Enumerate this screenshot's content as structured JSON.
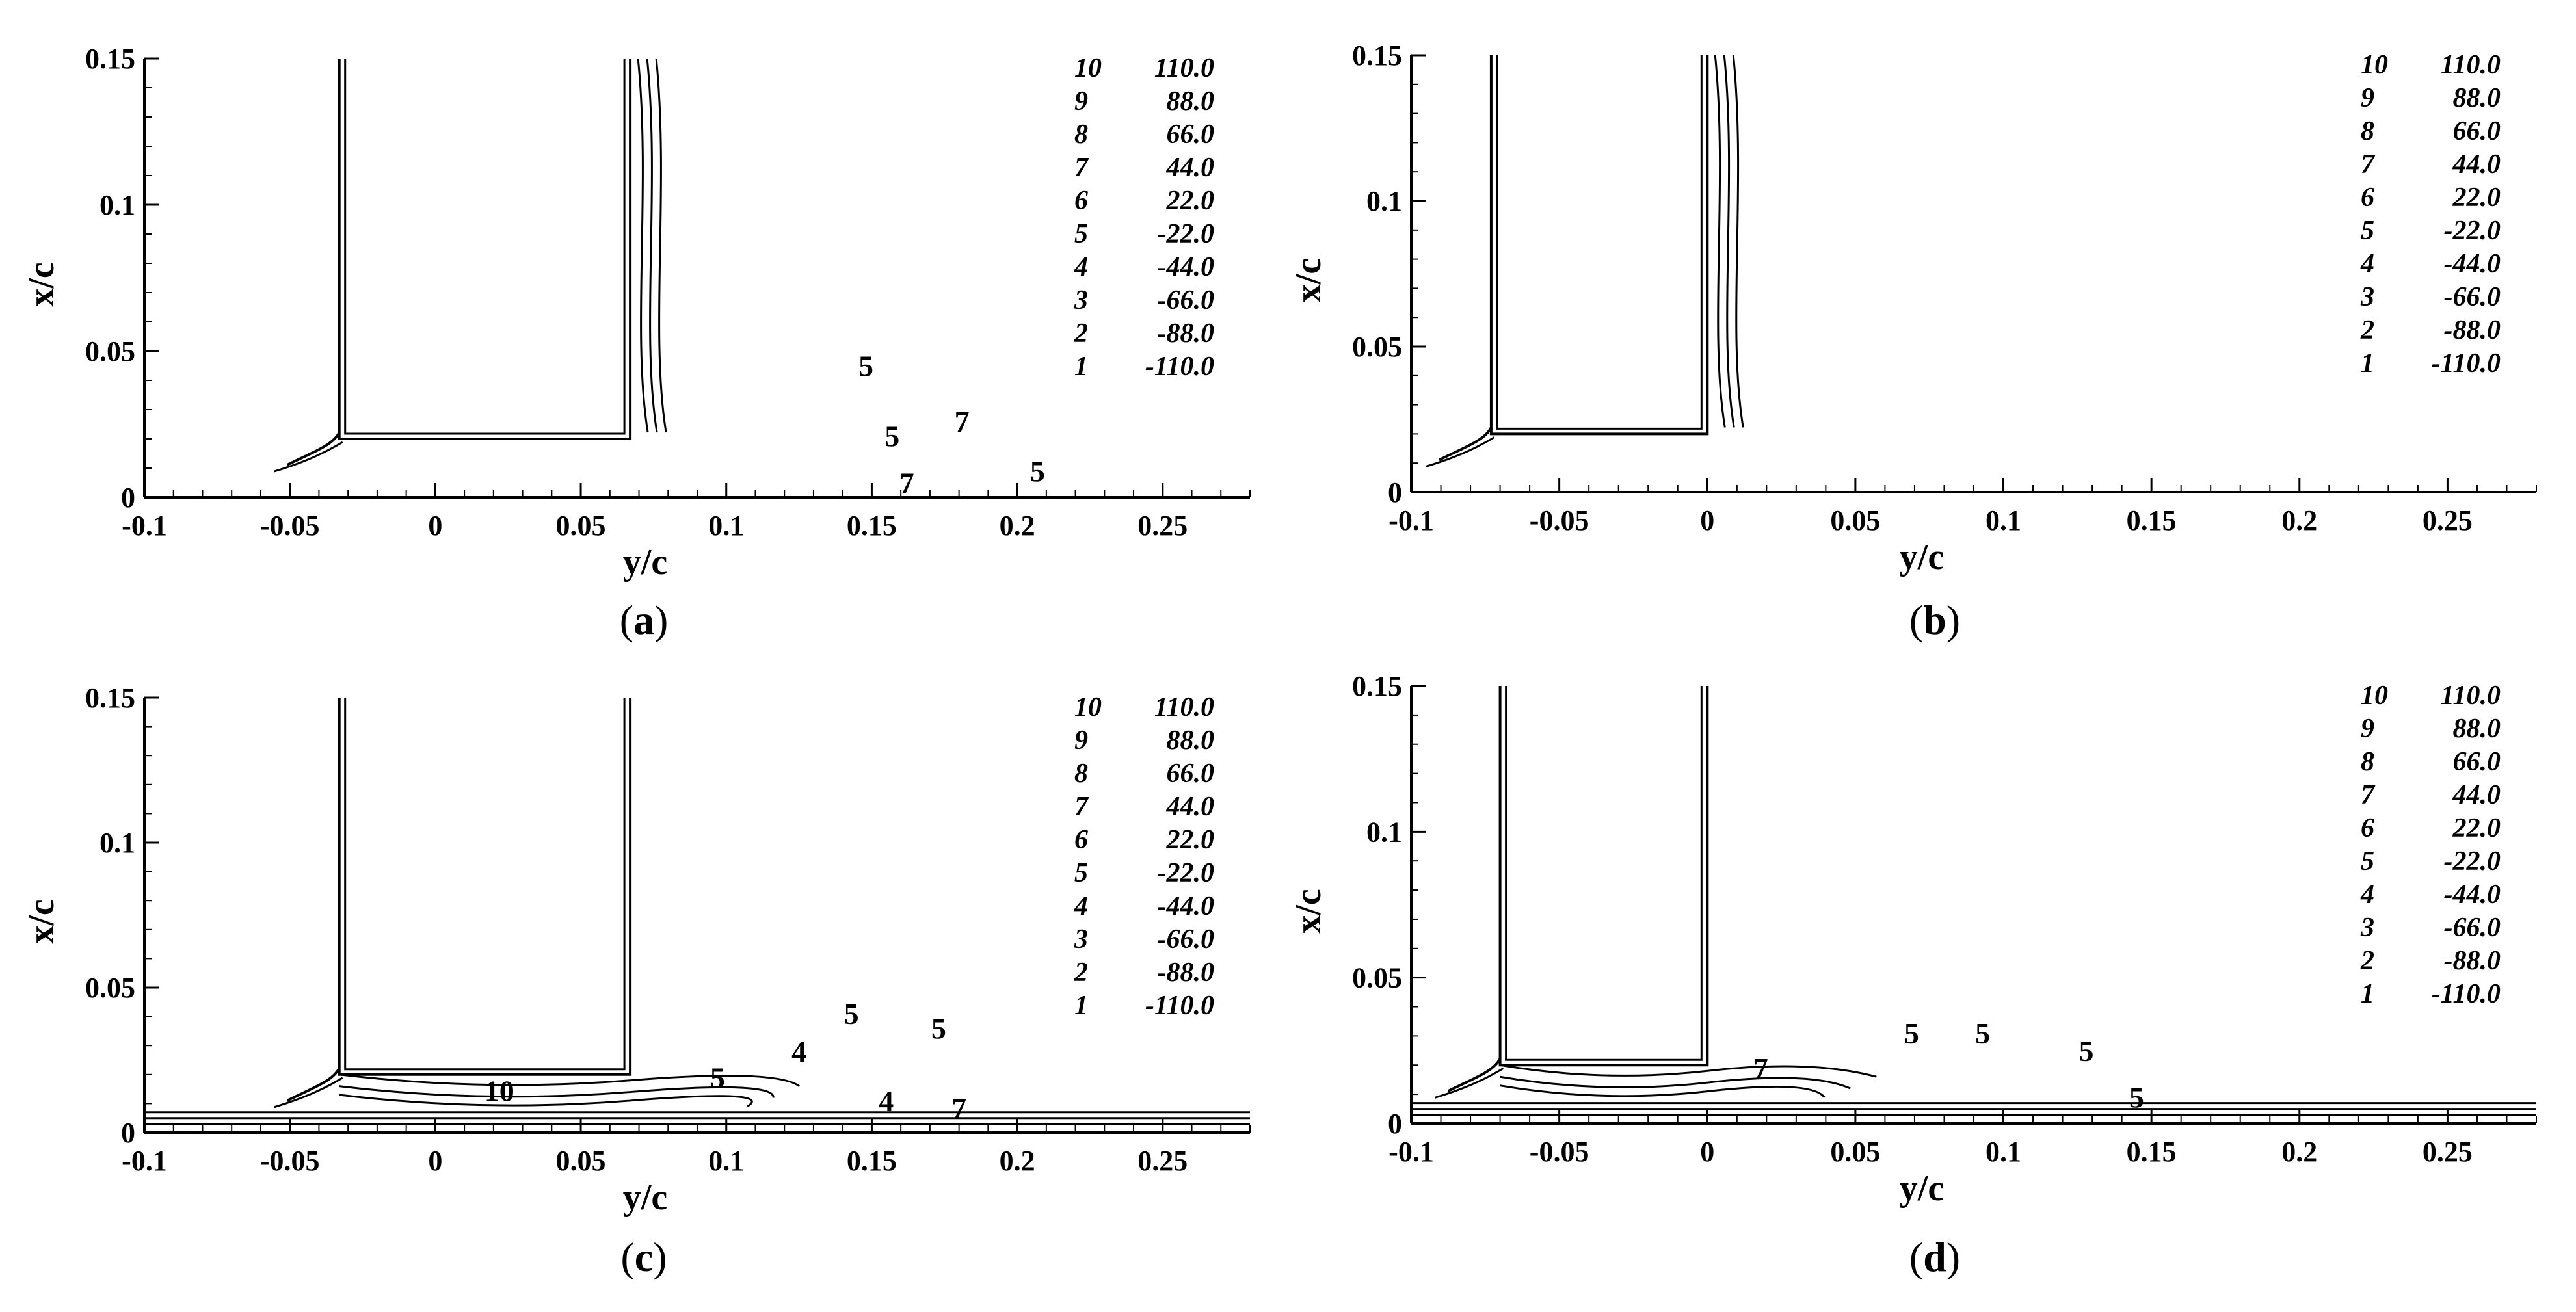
{
  "figure": {
    "panels": [
      {
        "id": "a",
        "caption_letter": "a"
      },
      {
        "id": "b",
        "caption_letter": "b"
      },
      {
        "id": "c",
        "caption_letter": "c"
      },
      {
        "id": "d",
        "caption_letter": "d"
      }
    ]
  },
  "chart_data": [
    {
      "panel": "a",
      "type": "contour",
      "xlabel": "y/c",
      "ylabel": "x/c",
      "xlim": [
        -0.1,
        0.28
      ],
      "ylim": [
        0,
        0.15
      ],
      "xticks": [
        "-0.1",
        "-0.05",
        "0",
        "0.05",
        "0.1",
        "0.15",
        "0.2",
        "0.25"
      ],
      "yticks": [
        "0",
        "0.05",
        "0.1",
        "0.15"
      ],
      "legend": [
        {
          "level": "10",
          "value": "110.0"
        },
        {
          "level": "9",
          "value": "88.0"
        },
        {
          "level": "8",
          "value": "66.0"
        },
        {
          "level": "7",
          "value": "44.0"
        },
        {
          "level": "6",
          "value": "22.0"
        },
        {
          "level": "5",
          "value": "-22.0"
        },
        {
          "level": "4",
          "value": "-44.0"
        },
        {
          "level": "3",
          "value": "-66.0"
        },
        {
          "level": "2",
          "value": "-88.0"
        },
        {
          "level": "1",
          "value": "-110.0"
        }
      ],
      "body_outline": [
        [
          -0.033,
          0.15
        ],
        [
          -0.033,
          0.02
        ],
        [
          0.067,
          0.02
        ],
        [
          0.067,
          0.15
        ]
      ],
      "contour_labels": [
        {
          "text": "5",
          "x": 0.148,
          "y": 0.045
        },
        {
          "text": "5",
          "x": 0.157,
          "y": 0.021
        },
        {
          "text": "7",
          "x": 0.181,
          "y": 0.026
        },
        {
          "text": "7",
          "x": 0.162,
          "y": 0.005
        },
        {
          "text": "5",
          "x": 0.207,
          "y": 0.009
        }
      ]
    },
    {
      "panel": "b",
      "type": "contour",
      "xlabel": "y/c",
      "ylabel": "x/c",
      "xlim": [
        -0.1,
        0.28
      ],
      "ylim": [
        0,
        0.15
      ],
      "xticks": [
        "-0.1",
        "-0.05",
        "0",
        "0.05",
        "0.1",
        "0.15",
        "0.2",
        "0.25"
      ],
      "yticks": [
        "0",
        "0.05",
        "0.1",
        "0.15"
      ],
      "legend": [
        {
          "level": "10",
          "value": "110.0"
        },
        {
          "level": "9",
          "value": "88.0"
        },
        {
          "level": "8",
          "value": "66.0"
        },
        {
          "level": "7",
          "value": "44.0"
        },
        {
          "level": "6",
          "value": "22.0"
        },
        {
          "level": "5",
          "value": "-22.0"
        },
        {
          "level": "4",
          "value": "-44.0"
        },
        {
          "level": "3",
          "value": "-66.0"
        },
        {
          "level": "2",
          "value": "-88.0"
        },
        {
          "level": "1",
          "value": "-110.0"
        }
      ],
      "body_outline": [
        [
          -0.073,
          0.15
        ],
        [
          -0.073,
          0.02
        ],
        [
          0.0,
          0.02
        ],
        [
          0.0,
          0.15
        ]
      ],
      "contour_labels": []
    },
    {
      "panel": "c",
      "type": "contour",
      "xlabel": "y/c",
      "ylabel": "x/c",
      "xlim": [
        -0.1,
        0.28
      ],
      "ylim": [
        0,
        0.15
      ],
      "xticks": [
        "-0.1",
        "-0.05",
        "0",
        "0.05",
        "0.1",
        "0.15",
        "0.2",
        "0.25"
      ],
      "yticks": [
        "0",
        "0.05",
        "0.1",
        "0.15"
      ],
      "legend": [
        {
          "level": "10",
          "value": "110.0"
        },
        {
          "level": "9",
          "value": "88.0"
        },
        {
          "level": "8",
          "value": "66.0"
        },
        {
          "level": "7",
          "value": "44.0"
        },
        {
          "level": "6",
          "value": "22.0"
        },
        {
          "level": "5",
          "value": "-22.0"
        },
        {
          "level": "4",
          "value": "-44.0"
        },
        {
          "level": "3",
          "value": "-66.0"
        },
        {
          "level": "2",
          "value": "-88.0"
        },
        {
          "level": "1",
          "value": "-110.0"
        }
      ],
      "body_outline": [
        [
          -0.033,
          0.15
        ],
        [
          -0.033,
          0.02
        ],
        [
          0.067,
          0.02
        ],
        [
          0.067,
          0.15
        ]
      ],
      "contour_labels": [
        {
          "text": "10",
          "x": 0.022,
          "y": 0.0145
        },
        {
          "text": "5",
          "x": 0.097,
          "y": 0.019
        },
        {
          "text": "4",
          "x": 0.125,
          "y": 0.028
        },
        {
          "text": "5",
          "x": 0.143,
          "y": 0.041
        },
        {
          "text": "5",
          "x": 0.173,
          "y": 0.036
        },
        {
          "text": "4",
          "x": 0.155,
          "y": 0.011
        },
        {
          "text": "7",
          "x": 0.18,
          "y": 0.0085
        }
      ]
    },
    {
      "panel": "d",
      "type": "contour",
      "xlabel": "y/c",
      "ylabel": "x/c",
      "xlim": [
        -0.1,
        0.28
      ],
      "ylim": [
        0,
        0.15
      ],
      "xticks": [
        "-0.1",
        "-0.05",
        "0",
        "0.05",
        "0.1",
        "0.15",
        "0.2",
        "0.25"
      ],
      "yticks": [
        "0",
        "0.05",
        "0.1",
        "0.15"
      ],
      "legend": [
        {
          "level": "10",
          "value": "110.0"
        },
        {
          "level": "9",
          "value": "88.0"
        },
        {
          "level": "8",
          "value": "66.0"
        },
        {
          "level": "7",
          "value": "44.0"
        },
        {
          "level": "6",
          "value": "22.0"
        },
        {
          "level": "5",
          "value": "-22.0"
        },
        {
          "level": "4",
          "value": "-44.0"
        },
        {
          "level": "3",
          "value": "-66.0"
        },
        {
          "level": "2",
          "value": "-88.0"
        },
        {
          "level": "1",
          "value": "-110.0"
        }
      ],
      "body_outline": [
        [
          -0.07,
          0.15
        ],
        [
          -0.07,
          0.02
        ],
        [
          0.0,
          0.02
        ],
        [
          0.0,
          0.15
        ]
      ],
      "contour_labels": [
        {
          "text": "7",
          "x": 0.018,
          "y": 0.019
        },
        {
          "text": "5",
          "x": 0.069,
          "y": 0.031
        },
        {
          "text": "5",
          "x": 0.093,
          "y": 0.031
        },
        {
          "text": "5",
          "x": 0.128,
          "y": 0.025
        },
        {
          "text": "5",
          "x": 0.145,
          "y": 0.009
        }
      ]
    }
  ]
}
